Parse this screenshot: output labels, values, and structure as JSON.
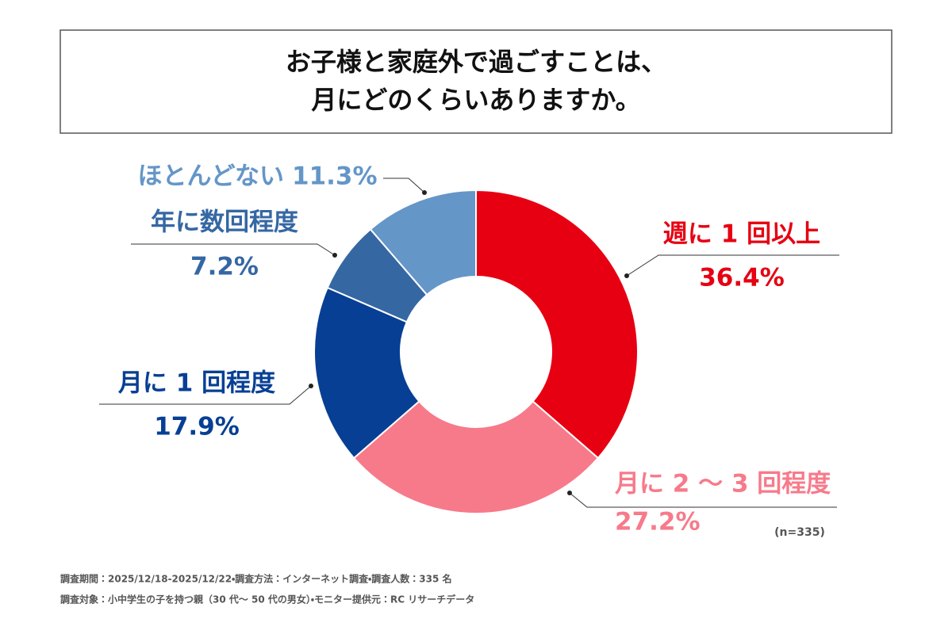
{
  "chart_data": {
    "type": "donut",
    "title": [
      "お子様と家庭外で過ごすことは、",
      "月にどのくらいありますか。"
    ],
    "categories": [
      "週に 1 回以上",
      "月に 2 〜 3 回程度",
      "月に 1 回程度",
      "年に数回程度",
      "ほとんどない"
    ],
    "values": [
      36.4,
      27.2,
      17.9,
      7.2,
      11.3
    ],
    "value_labels": [
      "36.4%",
      "27.2%",
      "17.9%",
      "7.2%",
      "11.3%"
    ],
    "colors": [
      "#e60012",
      "#f77a8a",
      "#073f94",
      "#3567a3",
      "#6496c8"
    ],
    "note": "(n=335)",
    "footnotes": [
      "調査期間：2025/12/18-2025/12/22・調査方法：インターネット調査・調査人数：335 名",
      "調査対象：小中学生の子を持つ親（30 代〜 50 代の男女）・モニター提供元：RC リサーチデータ"
    ]
  }
}
